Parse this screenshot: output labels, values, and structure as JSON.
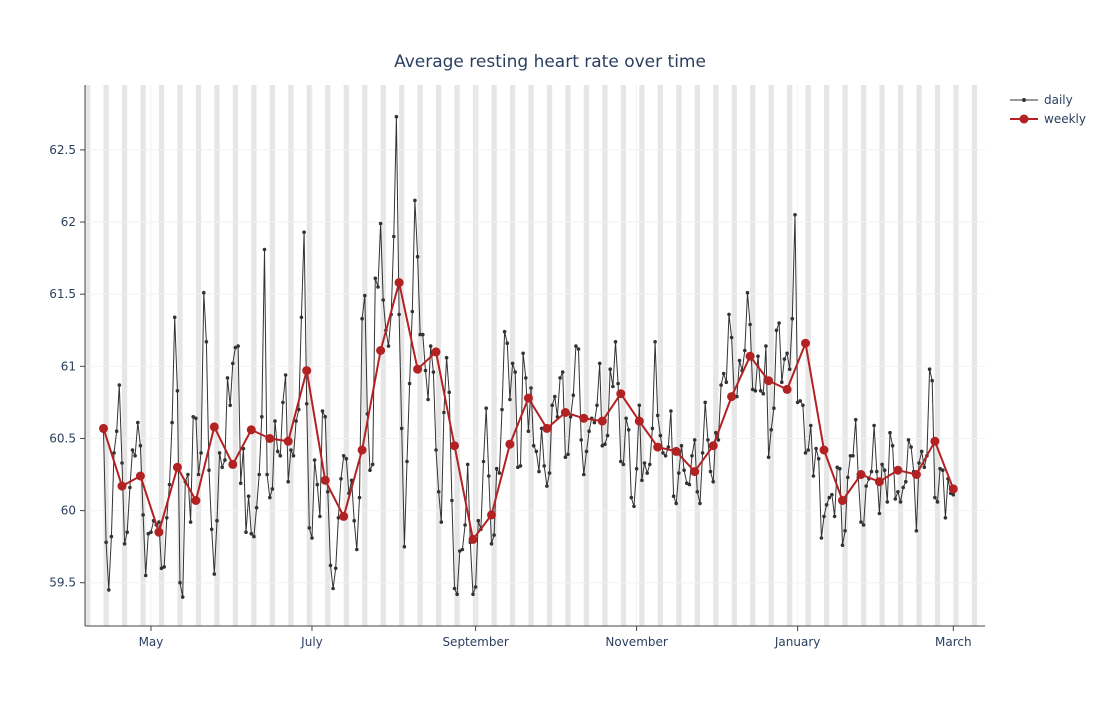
{
  "chart_data": {
    "type": "line",
    "title": "Average resting heart rate over time",
    "xlabel": "",
    "ylabel": "",
    "x_tick_labels": [
      {
        "date": "2024-05-01",
        "label": "May"
      },
      {
        "date": "2024-07-01",
        "label": "July"
      },
      {
        "date": "2024-09-01",
        "label": "September"
      },
      {
        "date": "2024-11-01",
        "label": "November"
      },
      {
        "date": "2025-01-01",
        "label": "January"
      },
      {
        "date": "2025-03-01",
        "label": "March"
      }
    ],
    "y_ticks": [
      59.5,
      60,
      60.5,
      61,
      61.5,
      62,
      62.5
    ],
    "xlim": [
      "2024-04-06",
      "2025-03-13"
    ],
    "ylim": [
      59.2,
      62.95
    ],
    "grid": true,
    "weekend_shading": true,
    "legend": {
      "position": "top-right"
    },
    "series": [
      {
        "name": "daily",
        "color": "#333333",
        "start": "2024-04-13",
        "values": [
          60.55,
          59.78,
          59.45,
          59.82,
          60.4,
          60.55,
          60.87,
          60.33,
          59.77,
          59.85,
          60.16,
          60.42,
          60.38,
          60.61,
          60.45,
          59.97,
          59.55,
          59.84,
          59.85,
          59.93,
          59.9,
          59.92,
          59.6,
          59.61,
          59.95,
          60.18,
          60.61,
          61.34,
          60.83,
          59.5,
          59.4,
          60.2,
          60.25,
          59.92,
          60.65,
          60.64,
          60.25,
          60.4,
          61.51,
          61.17,
          60.28,
          59.87,
          59.56,
          59.93,
          60.4,
          60.3,
          60.35,
          60.92,
          60.73,
          61.02,
          61.13,
          61.14,
          60.19,
          60.43,
          59.85,
          60.1,
          59.84,
          59.82,
          60.02,
          60.25,
          60.65,
          61.81,
          60.25,
          60.09,
          60.15,
          60.62,
          60.41,
          60.38,
          60.75,
          60.94,
          60.2,
          60.42,
          60.38,
          60.62,
          60.7,
          61.34,
          61.93,
          60.74,
          59.88,
          59.81,
          60.35,
          60.18,
          59.96,
          60.69,
          60.65,
          60.13,
          59.62,
          59.46,
          59.6,
          59.95,
          60.22,
          60.38,
          60.36,
          60.12,
          60.21,
          59.93,
          59.73,
          60.09,
          61.33,
          61.49,
          60.67,
          60.28,
          60.32,
          61.61,
          61.55,
          61.99,
          61.46,
          61.25,
          61.14,
          61.36,
          61.9,
          62.73,
          61.36,
          60.57,
          59.75,
          60.34,
          60.88,
          61.38,
          62.15,
          61.76,
          61.22,
          61.22,
          60.97,
          60.77,
          61.14,
          60.96,
          60.42,
          60.13,
          59.92,
          60.68,
          61.06,
          60.82,
          60.07,
          59.46,
          59.42,
          59.72,
          59.73,
          59.9,
          60.32,
          59.78,
          59.42,
          59.47,
          59.93,
          59.87,
          60.34,
          60.71,
          60.24,
          59.77,
          59.83,
          60.29,
          60.26,
          60.7,
          61.24,
          61.16,
          60.77,
          61.02,
          60.96,
          60.3,
          60.31,
          61.09,
          60.92,
          60.55,
          60.85,
          60.45,
          60.41,
          60.27,
          60.57,
          60.31,
          60.17,
          60.26,
          60.73,
          60.79,
          60.65,
          60.92,
          60.96,
          60.37,
          60.39,
          60.65,
          60.8,
          61.14,
          61.12,
          60.49,
          60.25,
          60.41,
          60.55,
          60.64,
          60.61,
          60.73,
          61.02,
          60.45,
          60.46,
          60.52,
          60.98,
          60.86,
          61.17,
          60.88,
          60.34,
          60.32,
          60.64,
          60.56,
          60.09,
          60.03,
          60.29,
          60.73,
          60.21,
          60.33,
          60.26,
          60.32,
          60.57,
          61.17,
          60.66,
          60.52,
          60.4,
          60.38,
          60.44,
          60.69,
          60.1,
          60.05,
          60.26,
          60.45,
          60.28,
          60.19,
          60.18,
          60.38,
          60.49,
          60.13,
          60.05,
          60.4,
          60.75,
          60.49,
          60.27,
          60.2,
          60.54,
          60.49,
          60.87,
          60.95,
          60.89,
          61.36,
          61.2,
          60.79,
          60.79,
          61.04,
          60.97,
          61.11,
          61.51,
          61.29,
          60.84,
          60.83,
          61.07,
          60.83,
          60.81,
          61.14,
          60.37,
          60.56,
          60.71,
          61.25,
          61.3,
          60.89,
          61.05,
          61.09,
          60.98,
          61.33,
          62.05,
          60.75,
          60.76,
          60.73,
          60.4,
          60.42,
          60.59,
          60.24,
          60.43,
          60.36,
          59.81,
          59.96,
          60.04,
          60.09,
          60.11,
          59.96,
          60.3,
          60.29,
          59.76,
          59.86,
          60.23,
          60.38,
          60.38,
          60.63,
          60.23,
          59.92,
          59.9,
          60.17,
          60.22,
          60.27,
          60.59,
          60.27,
          59.98,
          60.32,
          60.28,
          60.06,
          60.54,
          60.45,
          60.08,
          60.13,
          60.06,
          60.16,
          60.2,
          60.49,
          60.44,
          60.27,
          59.86,
          60.33,
          60.41,
          60.3,
          60.38,
          60.98,
          60.9,
          60.09,
          60.06,
          60.29,
          60.28,
          59.95,
          60.22,
          60.12,
          60.11
        ]
      },
      {
        "name": "weekly",
        "color": "#b22222",
        "start": "2024-04-13",
        "step_days": 7,
        "values": [
          60.57,
          60.17,
          60.24,
          59.85,
          60.3,
          60.07,
          60.58,
          60.32,
          60.56,
          60.5,
          60.48,
          60.97,
          60.21,
          59.96,
          60.42,
          61.11,
          61.58,
          60.98,
          61.1,
          60.45,
          59.8,
          59.97,
          60.46,
          60.78,
          60.57,
          60.68,
          60.64,
          60.62,
          60.81,
          60.62,
          60.44,
          60.41,
          60.27,
          60.45,
          60.79,
          61.07,
          60.9,
          60.84,
          61.16,
          60.42,
          60.07,
          60.25,
          60.2,
          60.28,
          60.25,
          60.48,
          60.15
        ]
      }
    ]
  }
}
